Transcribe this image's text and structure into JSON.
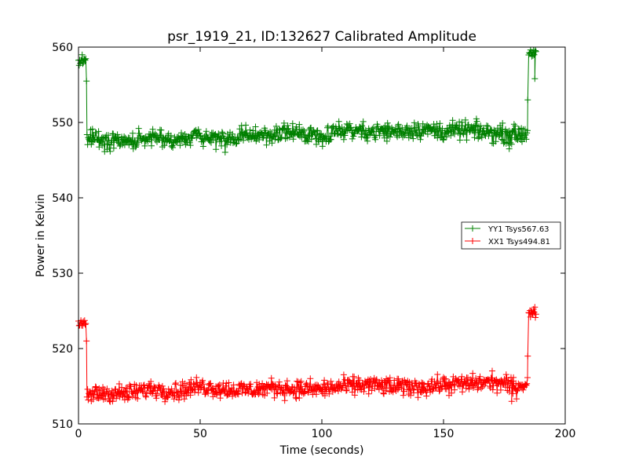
{
  "chart_data": {
    "type": "line",
    "title": "psr_1919_21, ID:132627 Calibrated Amplitude",
    "xlabel": "Time (seconds)",
    "ylabel": "Power in Kelvin",
    "xlim": [
      0,
      200
    ],
    "ylim": [
      510,
      560
    ],
    "xticks": [
      0,
      50,
      100,
      150,
      200
    ],
    "yticks": [
      510,
      520,
      530,
      540,
      550,
      560
    ],
    "grid": false,
    "marker": "+",
    "legend_position": "right",
    "sample_interval_s": 0.25,
    "series": [
      {
        "name": "YY1 Tsys567.63",
        "color": "#008000",
        "segments": [
          {
            "x_start": 0,
            "x_end": 3.2,
            "mean": 558.2,
            "spread": 0.5
          },
          {
            "x_start": 3.5,
            "x_end": 184.5,
            "mean_profile": [
              [
                3.5,
                548.0
              ],
              [
                10,
                547.3
              ],
              [
                20,
                547.6
              ],
              [
                30,
                547.9
              ],
              [
                40,
                547.5
              ],
              [
                50,
                548.3
              ],
              [
                60,
                547.6
              ],
              [
                70,
                548.3
              ],
              [
                80,
                548.4
              ],
              [
                90,
                548.6
              ],
              [
                100,
                548.3
              ],
              [
                110,
                549.1
              ],
              [
                120,
                548.8
              ],
              [
                130,
                548.8
              ],
              [
                140,
                549.1
              ],
              [
                150,
                548.8
              ],
              [
                160,
                549.0
              ],
              [
                170,
                548.6
              ],
              [
                180,
                548.4
              ],
              [
                184.5,
                548.6
              ]
            ],
            "spread": 0.9
          },
          {
            "x_start": 185,
            "x_end": 188,
            "mean": 559.3,
            "spread": 0.4
          }
        ],
        "spikes": [
          [
            3.3,
            555.5
          ],
          [
            184.6,
            553.0
          ],
          [
            187.5,
            555.8
          ],
          [
            177,
            546.5
          ]
        ]
      },
      {
        "name": "XX1 Tsys494.81",
        "color": "#ff0000",
        "segments": [
          {
            "x_start": 0,
            "x_end": 3.2,
            "mean": 523.2,
            "spread": 0.4
          },
          {
            "x_start": 3.5,
            "x_end": 184.5,
            "mean_profile": [
              [
                3.5,
                513.8
              ],
              [
                10,
                514.1
              ],
              [
                20,
                514.0
              ],
              [
                30,
                514.7
              ],
              [
                40,
                514.3
              ],
              [
                50,
                515.0
              ],
              [
                60,
                514.6
              ],
              [
                70,
                514.5
              ],
              [
                80,
                514.8
              ],
              [
                90,
                514.6
              ],
              [
                100,
                514.6
              ],
              [
                110,
                515.0
              ],
              [
                120,
                515.2
              ],
              [
                130,
                514.9
              ],
              [
                140,
                514.9
              ],
              [
                150,
                515.2
              ],
              [
                160,
                515.3
              ],
              [
                170,
                515.6
              ],
              [
                180,
                514.9
              ],
              [
                184.5,
                515.6
              ]
            ],
            "spread": 0.9
          },
          {
            "x_start": 185,
            "x_end": 188,
            "mean": 524.7,
            "spread": 0.5
          }
        ],
        "spikes": [
          [
            3.3,
            521.0
          ],
          [
            184.6,
            519.0
          ],
          [
            178,
            513.0
          ]
        ]
      }
    ]
  }
}
